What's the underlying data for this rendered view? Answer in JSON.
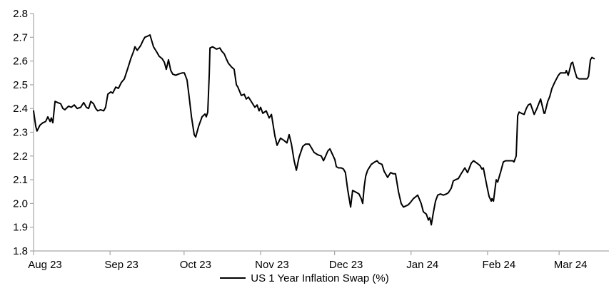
{
  "chart_data": {
    "type": "line",
    "title": "",
    "grid": false,
    "legend_position": "bottom-center",
    "axis_color": "#a6a6a6",
    "text_color": "#000000",
    "x_axis": {
      "unit": "days since 2023-08-01",
      "range_days": [
        0,
        233
      ],
      "tick_days": [
        0,
        31,
        61,
        92,
        122,
        153,
        184,
        213
      ],
      "tick_labels": [
        "Aug 23",
        "Sep 23",
        "Oct 23",
        "Nov 23",
        "Dec 23",
        "Jan 24",
        "Feb 24",
        "Mar 24"
      ]
    },
    "y_axis": {
      "range": [
        1.8,
        2.8
      ],
      "tick_step": 0.1,
      "tick_labels": [
        "1.8",
        "1.9",
        "2.0",
        "2.1",
        "2.2",
        "2.3",
        "2.4",
        "2.5",
        "2.6",
        "2.7",
        "2.8"
      ]
    },
    "series": [
      {
        "name": "US 1 Year Inflation Swap (%)",
        "color": "#000000",
        "points_day_value": [
          [
            0,
            2.39
          ],
          [
            0.9,
            2.325
          ],
          [
            1.4,
            2.305
          ],
          [
            2.6,
            2.33
          ],
          [
            3.8,
            2.34
          ],
          [
            4.9,
            2.345
          ],
          [
            5.8,
            2.365
          ],
          [
            6.7,
            2.345
          ],
          [
            7.2,
            2.36
          ],
          [
            7.8,
            2.34
          ],
          [
            8.7,
            2.43
          ],
          [
            9.8,
            2.425
          ],
          [
            11,
            2.42
          ],
          [
            11.9,
            2.4
          ],
          [
            12.7,
            2.395
          ],
          [
            14.2,
            2.41
          ],
          [
            15.3,
            2.405
          ],
          [
            16.5,
            2.415
          ],
          [
            17.7,
            2.4
          ],
          [
            19.1,
            2.405
          ],
          [
            20.3,
            2.425
          ],
          [
            21.4,
            2.405
          ],
          [
            22.3,
            2.4
          ],
          [
            23.2,
            2.43
          ],
          [
            24.3,
            2.42
          ],
          [
            25.2,
            2.4
          ],
          [
            26,
            2.39
          ],
          [
            27.2,
            2.395
          ],
          [
            28.4,
            2.39
          ],
          [
            29.2,
            2.405
          ],
          [
            30.1,
            2.46
          ],
          [
            31.3,
            2.47
          ],
          [
            32.1,
            2.465
          ],
          [
            33.3,
            2.49
          ],
          [
            34.4,
            2.485
          ],
          [
            35.6,
            2.51
          ],
          [
            36.8,
            2.525
          ],
          [
            37.6,
            2.55
          ],
          [
            38.5,
            2.58
          ],
          [
            39.4,
            2.61
          ],
          [
            40.5,
            2.64
          ],
          [
            41.1,
            2.66
          ],
          [
            42,
            2.645
          ],
          [
            43.4,
            2.665
          ],
          [
            44.3,
            2.685
          ],
          [
            45.1,
            2.7
          ],
          [
            46.3,
            2.705
          ],
          [
            47.2,
            2.71
          ],
          [
            48.6,
            2.66
          ],
          [
            50.1,
            2.635
          ],
          [
            50.9,
            2.62
          ],
          [
            52.1,
            2.61
          ],
          [
            53,
            2.595
          ],
          [
            53.8,
            2.565
          ],
          [
            54.7,
            2.605
          ],
          [
            55.6,
            2.56
          ],
          [
            56.4,
            2.545
          ],
          [
            57.6,
            2.54
          ],
          [
            58.7,
            2.545
          ],
          [
            60.2,
            2.55
          ],
          [
            61.1,
            2.55
          ],
          [
            62.2,
            2.52
          ],
          [
            63.1,
            2.445
          ],
          [
            64,
            2.365
          ],
          [
            65.1,
            2.29
          ],
          [
            65.7,
            2.28
          ],
          [
            66.9,
            2.325
          ],
          [
            68.3,
            2.365
          ],
          [
            69.5,
            2.377
          ],
          [
            70,
            2.365
          ],
          [
            70.6,
            2.385
          ],
          [
            71.2,
            2.545
          ],
          [
            71.5,
            2.655
          ],
          [
            72.6,
            2.66
          ],
          [
            74.1,
            2.65
          ],
          [
            75.5,
            2.655
          ],
          [
            76.4,
            2.64
          ],
          [
            77.3,
            2.63
          ],
          [
            78.1,
            2.61
          ],
          [
            79,
            2.59
          ],
          [
            80.2,
            2.575
          ],
          [
            81.3,
            2.565
          ],
          [
            82.2,
            2.5
          ],
          [
            82.8,
            2.49
          ],
          [
            84.2,
            2.455
          ],
          [
            85.4,
            2.46
          ],
          [
            86.2,
            2.44
          ],
          [
            87.1,
            2.448
          ],
          [
            88.5,
            2.425
          ],
          [
            89.7,
            2.405
          ],
          [
            90.6,
            2.415
          ],
          [
            91.4,
            2.39
          ],
          [
            92,
            2.405
          ],
          [
            92.9,
            2.38
          ],
          [
            94.3,
            2.39
          ],
          [
            95.5,
            2.36
          ],
          [
            96.4,
            2.375
          ],
          [
            97.8,
            2.285
          ],
          [
            98.7,
            2.245
          ],
          [
            100.1,
            2.275
          ],
          [
            101.6,
            2.265
          ],
          [
            102.7,
            2.255
          ],
          [
            103.6,
            2.29
          ],
          [
            104.5,
            2.25
          ],
          [
            105.6,
            2.18
          ],
          [
            106.5,
            2.14
          ],
          [
            107.6,
            2.195
          ],
          [
            109.1,
            2.24
          ],
          [
            110.2,
            2.25
          ],
          [
            111.7,
            2.25
          ],
          [
            112.6,
            2.235
          ],
          [
            113.7,
            2.215
          ],
          [
            115.2,
            2.205
          ],
          [
            116.6,
            2.2
          ],
          [
            117.5,
            2.18
          ],
          [
            118.4,
            2.2
          ],
          [
            119.2,
            2.22
          ],
          [
            120.1,
            2.23
          ],
          [
            121.2,
            2.205
          ],
          [
            122.1,
            2.185
          ],
          [
            122.7,
            2.155
          ],
          [
            123.6,
            2.15
          ],
          [
            124.7,
            2.15
          ],
          [
            125.6,
            2.145
          ],
          [
            126.4,
            2.13
          ],
          [
            127.3,
            2.06
          ],
          [
            128.5,
            1.985
          ],
          [
            129.3,
            2.055
          ],
          [
            130.2,
            2.05
          ],
          [
            131.1,
            2.045
          ],
          [
            131.9,
            2.04
          ],
          [
            132.8,
            2.02
          ],
          [
            133.4,
            2.0
          ],
          [
            134,
            2.07
          ],
          [
            134.6,
            2.115
          ],
          [
            135.4,
            2.14
          ],
          [
            136.9,
            2.165
          ],
          [
            138.3,
            2.175
          ],
          [
            139.2,
            2.18
          ],
          [
            140,
            2.17
          ],
          [
            141.2,
            2.165
          ],
          [
            142.1,
            2.135
          ],
          [
            143.5,
            2.11
          ],
          [
            144.7,
            2.13
          ],
          [
            145.8,
            2.125
          ],
          [
            146.7,
            2.125
          ],
          [
            147.9,
            2.05
          ],
          [
            149,
            2.0
          ],
          [
            149.9,
            1.985
          ],
          [
            151,
            1.99
          ],
          [
            151.9,
            1.995
          ],
          [
            152.8,
            2.005
          ],
          [
            153.9,
            2.02
          ],
          [
            155.1,
            2.03
          ],
          [
            155.7,
            2.035
          ],
          [
            157.1,
            2.0
          ],
          [
            158,
            1.965
          ],
          [
            159.2,
            1.955
          ],
          [
            160,
            1.93
          ],
          [
            160.6,
            1.94
          ],
          [
            161.2,
            1.91
          ],
          [
            162,
            1.96
          ],
          [
            162.9,
            2.01
          ],
          [
            163.8,
            2.035
          ],
          [
            164.9,
            2.04
          ],
          [
            166.1,
            2.035
          ],
          [
            167.3,
            2.04
          ],
          [
            168.1,
            2.045
          ],
          [
            169.3,
            2.065
          ],
          [
            170.1,
            2.095
          ],
          [
            171,
            2.1
          ],
          [
            172.2,
            2.105
          ],
          [
            173,
            2.12
          ],
          [
            173.9,
            2.135
          ],
          [
            174.8,
            2.15
          ],
          [
            175.9,
            2.13
          ],
          [
            177.4,
            2.17
          ],
          [
            178.3,
            2.18
          ],
          [
            179.7,
            2.17
          ],
          [
            180.9,
            2.16
          ],
          [
            181.7,
            2.145
          ],
          [
            182.3,
            2.15
          ],
          [
            183.8,
            2.07
          ],
          [
            184.6,
            2.03
          ],
          [
            185.5,
            2.01
          ],
          [
            185.8,
            2.02
          ],
          [
            186.4,
            2.01
          ],
          [
            187.5,
            2.1
          ],
          [
            188.1,
            2.09
          ],
          [
            189.5,
            2.14
          ],
          [
            190.4,
            2.175
          ],
          [
            191.3,
            2.18
          ],
          [
            192.7,
            2.18
          ],
          [
            194.2,
            2.18
          ],
          [
            194.7,
            2.175
          ],
          [
            195.6,
            2.2
          ],
          [
            196.2,
            2.37
          ],
          [
            196.8,
            2.385
          ],
          [
            197.7,
            2.38
          ],
          [
            198.8,
            2.375
          ],
          [
            199.7,
            2.4
          ],
          [
            200.5,
            2.415
          ],
          [
            201.4,
            2.42
          ],
          [
            202.9,
            2.375
          ],
          [
            204,
            2.4
          ],
          [
            205.5,
            2.44
          ],
          [
            206.9,
            2.38
          ],
          [
            207.2,
            2.38
          ],
          [
            208.4,
            2.43
          ],
          [
            209.2,
            2.45
          ],
          [
            210.1,
            2.485
          ],
          [
            211.2,
            2.51
          ],
          [
            212.7,
            2.54
          ],
          [
            213.5,
            2.55
          ],
          [
            214.7,
            2.55
          ],
          [
            215.6,
            2.55
          ],
          [
            215.9,
            2.56
          ],
          [
            216.7,
            2.54
          ],
          [
            217.9,
            2.59
          ],
          [
            218.5,
            2.595
          ],
          [
            219.3,
            2.56
          ],
          [
            220.2,
            2.53
          ],
          [
            221.1,
            2.525
          ],
          [
            222.2,
            2.525
          ],
          [
            223.4,
            2.525
          ],
          [
            224.3,
            2.525
          ],
          [
            224.9,
            2.535
          ],
          [
            225.7,
            2.605
          ],
          [
            226.3,
            2.615
          ],
          [
            227.2,
            2.61
          ]
        ]
      }
    ]
  },
  "legend": {
    "label": "US 1 Year Inflation Swap (%)"
  }
}
